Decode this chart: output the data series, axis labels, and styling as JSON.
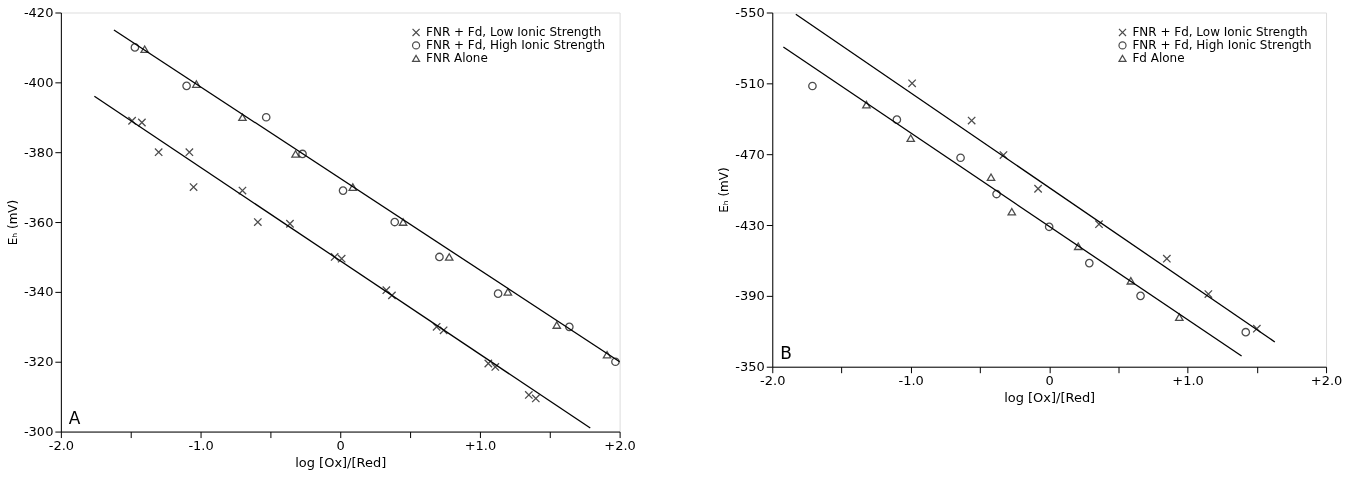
{
  "chart_data": [
    {
      "type": "scatter",
      "xlabel": "log [Ox]/[Red]",
      "ylabel": "Eₕ (mV)",
      "annotations": [
        "A"
      ],
      "xlim": [
        -2.0,
        2.0
      ],
      "xticks": [
        {
          "value": -2.0,
          "label": "-2.0"
        },
        {
          "value": -1.5,
          "label": null
        },
        {
          "value": -1.0,
          "label": "-1.0"
        },
        {
          "value": -0.5,
          "label": null
        },
        0,
        {
          "value": 0.5,
          "label": null
        },
        {
          "value": 1.0,
          "label": "+1.0"
        },
        {
          "value": 1.5,
          "label": null
        },
        {
          "value": 2.0,
          "label": "+2.0"
        }
      ],
      "ylim": [
        -300,
        -420
      ],
      "yticks": [
        -420,
        -400,
        -380,
        -360,
        -340,
        -320,
        -300
      ],
      "grid": false,
      "legend": "top right",
      "series": [
        {
          "name": "FNR + Fd, Low Ionic Strength",
          "color": "#000000",
          "marker": "cross",
          "x": [
            -1.49,
            -1.42,
            -1.3,
            -1.08,
            -1.05,
            -0.7,
            -0.59,
            -0.36,
            -0.04,
            0.01,
            0.33,
            0.37,
            0.69,
            0.74,
            1.06,
            1.11,
            1.35,
            1.4
          ],
          "values": [
            -389,
            -388.5,
            -380,
            -380,
            -370,
            -369,
            -360,
            -359.5,
            -350,
            -349.5,
            -340.5,
            -339,
            -330,
            -329,
            -319.5,
            -318.5,
            -310.5,
            -309.5
          ]
        },
        {
          "name": "FNR + Fd, High Ionic Strength",
          "color": "#000000",
          "marker": "circle",
          "x": [
            -1.47,
            -1.1,
            -0.53,
            -0.27,
            0.02,
            0.39,
            0.71,
            1.13,
            1.64,
            1.97
          ],
          "values": [
            -410,
            -399,
            -390,
            -379.5,
            -369,
            -360,
            -350,
            -339.5,
            -330,
            -320
          ]
        },
        {
          "name": "FNR Alone",
          "color": "#000000",
          "marker": "triangle",
          "x": [
            -1.4,
            -1.03,
            -0.7,
            -0.32,
            0.09,
            0.45,
            0.78,
            1.2,
            1.55,
            1.91
          ],
          "values": [
            -409.5,
            -399.5,
            -390,
            -379.5,
            -370,
            -360,
            -350,
            -340,
            -330.5,
            -322
          ]
        },
        {
          "type": "line",
          "color": "#000000",
          "line_style": "solid",
          "x": [
            -1.62,
            2.0
          ],
          "values": [
            -415,
            -320
          ]
        },
        {
          "type": "line",
          "color": "#000000",
          "line_style": "solid",
          "x": [
            -1.76,
            1.79
          ],
          "values": [
            -396,
            -301
          ]
        }
      ]
    },
    {
      "type": "scatter",
      "xlabel": "log [Ox]/[Red]",
      "ylabel": "Eₕ (mV)",
      "annotations": [
        "B"
      ],
      "xlim": [
        -2.0,
        2.0
      ],
      "xticks": [
        {
          "value": -2.0,
          "label": "-2.0"
        },
        {
          "value": -1.5,
          "label": null
        },
        {
          "value": -1.0,
          "label": "-1.0"
        },
        {
          "value": -0.5,
          "label": null
        },
        0,
        {
          "value": 0.5,
          "label": null
        },
        {
          "value": 1.0,
          "label": "+1.0"
        },
        {
          "value": 1.5,
          "label": null
        },
        {
          "value": 2.0,
          "label": "+2.0"
        }
      ],
      "ylim": [
        -350,
        -550
      ],
      "yticks": [
        -550,
        -510,
        -470,
        -430,
        -390,
        -350
      ],
      "grid": false,
      "legend": "top right",
      "series": [
        {
          "name": "FNR + Fd, Low Ionic Strength",
          "color": "#000000",
          "marker": "cross",
          "x": [
            -0.99,
            -0.56,
            -0.33,
            -0.08,
            0.36,
            0.85,
            1.15,
            1.5
          ],
          "values": [
            -510,
            -489,
            -469.5,
            -450.5,
            -430.5,
            -411,
            -391,
            -371.5
          ]
        },
        {
          "name": "FNR + Fd, High Ionic Strength",
          "color": "#000000",
          "marker": "circle",
          "x": [
            -1.71,
            -1.1,
            -0.64,
            -0.38,
            0.0,
            0.29,
            0.66,
            1.42
          ],
          "values": [
            -508.5,
            -489.5,
            -468,
            -447.5,
            -429,
            -408.5,
            -390,
            -369.5
          ]
        },
        {
          "name": "Fd Alone",
          "color": "#000000",
          "marker": "triangle",
          "x": [
            -1.32,
            -1.0,
            -0.42,
            -0.27,
            0.21,
            0.59,
            0.94
          ],
          "values": [
            -498,
            -479,
            -457,
            -437.5,
            -418,
            -398.5,
            -378
          ]
        },
        {
          "type": "line",
          "color": "#000000",
          "line_style": "solid",
          "x": [
            -1.83,
            1.63
          ],
          "values": [
            -549,
            -364
          ]
        },
        {
          "type": "line",
          "color": "#000000",
          "line_style": "solid",
          "x": [
            -1.92,
            1.39
          ],
          "values": [
            -530.5,
            -356
          ]
        }
      ]
    }
  ]
}
